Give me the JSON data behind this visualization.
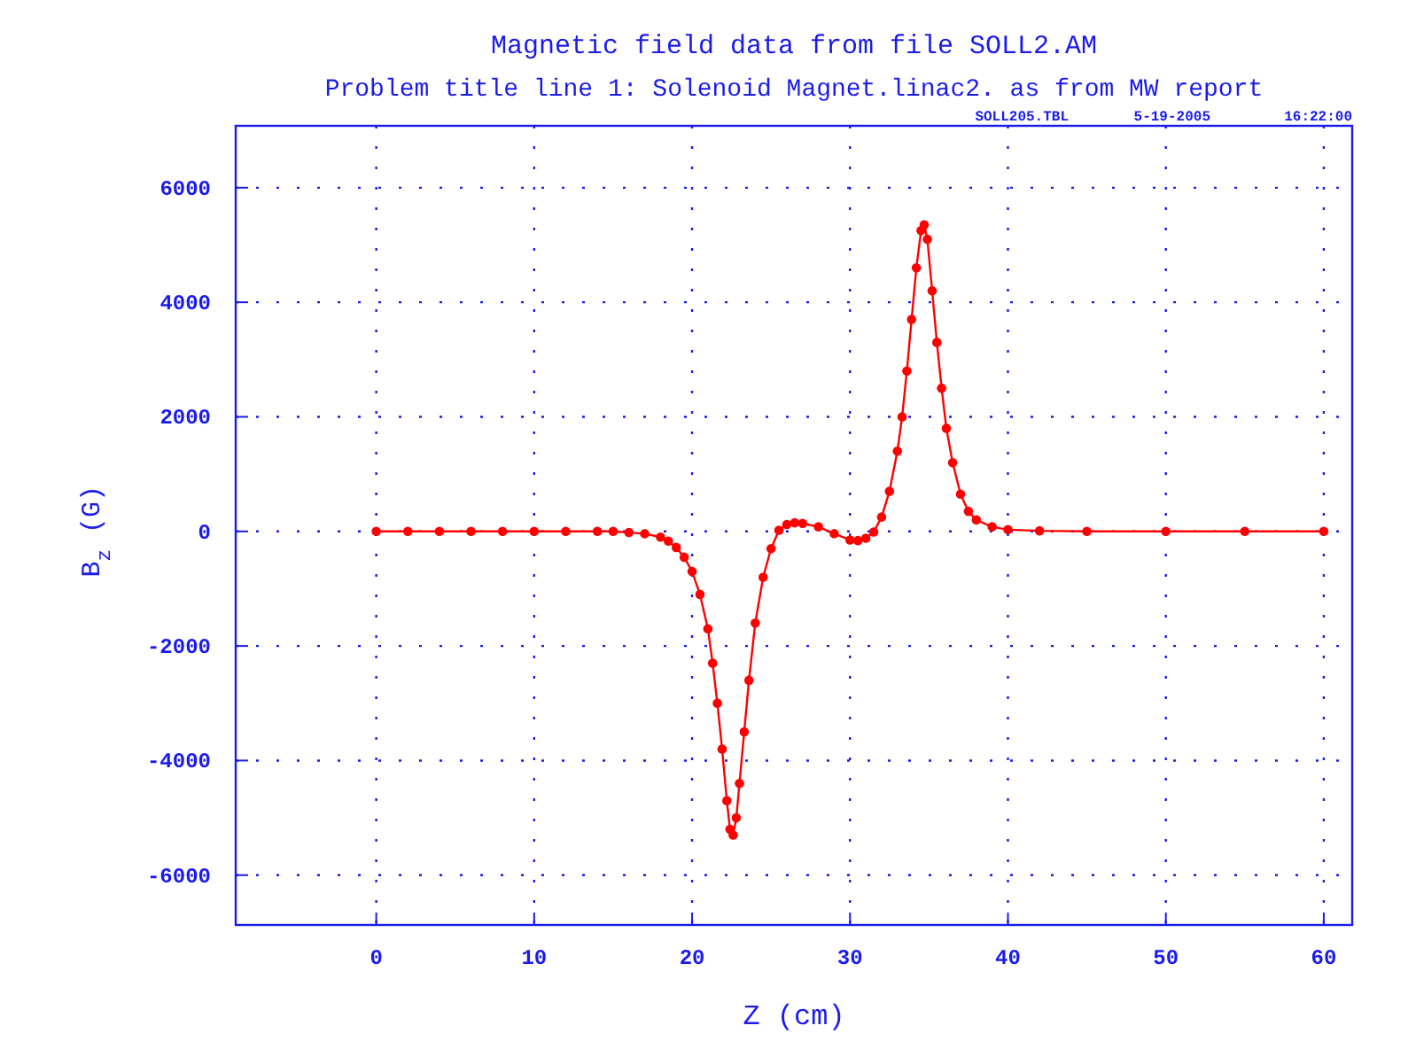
{
  "chart_data": {
    "type": "line",
    "title": "Magnetic field data from file SOLL2.AM",
    "subtitle": "Problem title line 1: Solenoid Magnet.linac2. as from MW report",
    "xlabel": "Z (cm)",
    "ylabel": "B$_{z}$ (G)",
    "annotations": [
      "SOLL205.TBL",
      "5-19-2005",
      "16:22:00"
    ],
    "xlim": [
      -8.9,
      61.8
    ],
    "ylim": [
      -6870,
      7080
    ],
    "xticks": [
      0,
      10,
      20,
      30,
      40,
      50,
      60
    ],
    "yticks": [
      -6000,
      -4000,
      -2000,
      0,
      2000,
      4000,
      6000
    ],
    "grid": true,
    "marker": "circle",
    "line_style": "solid",
    "series": [
      {
        "color": "#ff0000",
        "x": [
          0,
          2,
          4,
          6,
          8,
          10,
          12,
          14,
          15,
          16,
          17,
          18,
          18.5,
          19,
          19.5,
          20,
          20.5,
          21,
          21.3,
          21.6,
          21.9,
          22.2,
          22.4,
          22.6,
          22.8,
          23,
          23.3,
          23.6,
          24,
          24.5,
          25,
          25.5,
          26,
          26.5,
          27,
          28,
          29,
          30,
          30.5,
          31,
          31.5,
          32,
          32.5,
          33,
          33.3,
          33.6,
          33.9,
          34.2,
          34.5,
          34.7,
          34.9,
          35.2,
          35.5,
          35.8,
          36.1,
          36.5,
          37,
          37.5,
          38,
          39,
          40,
          42,
          45,
          50,
          55,
          60
        ],
        "values": [
          0,
          0,
          0,
          0,
          0,
          0,
          0,
          0,
          0,
          -20,
          -40,
          -100,
          -170,
          -280,
          -450,
          -700,
          -1100,
          -1700,
          -2300,
          -3000,
          -3800,
          -4700,
          -5200,
          -5300,
          -5000,
          -4400,
          -3500,
          -2600,
          -1600,
          -800,
          -300,
          20,
          120,
          150,
          140,
          80,
          -40,
          -150,
          -160,
          -120,
          -10,
          250,
          700,
          1400,
          2000,
          2800,
          3700,
          4600,
          5250,
          5350,
          5100,
          4200,
          3300,
          2500,
          1800,
          1200,
          650,
          350,
          200,
          80,
          30,
          10,
          0,
          0,
          0,
          0
        ]
      }
    ]
  }
}
